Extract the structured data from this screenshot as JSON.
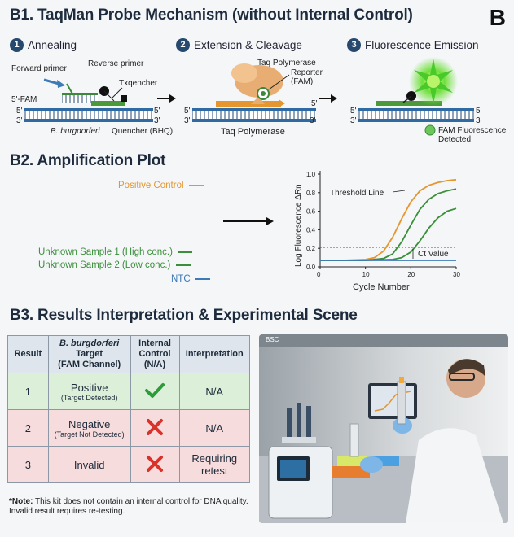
{
  "b1": {
    "title": "B1. TaqMan Probe Mechanism (without Internal Control)",
    "corner": "B",
    "steps": [
      {
        "num": "1",
        "label": "Annealing"
      },
      {
        "num": "2",
        "label": "Extension & Cleavage"
      },
      {
        "num": "3",
        "label": "Fluorescence Emission"
      }
    ],
    "labels": {
      "forward_primer": "Forward primer",
      "reverse_primer": "Reverse primer",
      "txqencher": "Txqencher",
      "fam_5": "5'-FAM",
      "b_burg": "B. burgdorferi",
      "quencher": "Quencher (BHQ)",
      "taq_poly_top": "Taq Polymerase",
      "reporter": "Reporter\n(FAM)",
      "taq_poly_bottom": "Taq Polymerase",
      "fam_fluor": "FAM Fluorescence\nDetected",
      "p5": "5'",
      "p3": "3'"
    }
  },
  "b2": {
    "title": "B2. Amplification Plot",
    "legend": [
      {
        "label": "Positive Control",
        "color": "#e5962e"
      },
      {
        "label": "Unknown Sample 1 (High conc.)",
        "color": "#3b8f3b"
      },
      {
        "label": "Unknown Sample 2 (Low conc.)",
        "color": "#3b8f3b"
      },
      {
        "label": "NTC",
        "color": "#3c7ab8"
      }
    ],
    "threshold_label": "Threshold Line",
    "ct_label": "Ct Value",
    "chart_data": {
      "type": "line",
      "xlabel": "Cycle Number",
      "ylabel": "Log Fluorescence ΔRn",
      "xlim": [
        0,
        30
      ],
      "ylim": [
        0,
        1.0
      ],
      "xticks": [
        "0",
        "10",
        "20",
        "30"
      ],
      "yticks": [
        "0.0",
        "0.2",
        "0.4",
        "0.6",
        "0.8",
        "1.0"
      ],
      "threshold": 0.21,
      "series": [
        {
          "name": "Positive Control",
          "color": "#e5962e",
          "x": [
            0,
            5,
            10,
            12,
            14,
            16,
            18,
            20,
            22,
            24,
            26,
            28,
            30
          ],
          "y": [
            0.07,
            0.07,
            0.08,
            0.1,
            0.17,
            0.32,
            0.52,
            0.7,
            0.82,
            0.88,
            0.91,
            0.93,
            0.94
          ]
        },
        {
          "name": "Unknown Sample 1 (High conc.)",
          "color": "#3b8f3b",
          "x": [
            0,
            5,
            10,
            14,
            16,
            18,
            20,
            22,
            24,
            26,
            28,
            30
          ],
          "y": [
            0.07,
            0.07,
            0.07,
            0.09,
            0.14,
            0.27,
            0.45,
            0.62,
            0.73,
            0.79,
            0.82,
            0.84
          ]
        },
        {
          "name": "Unknown Sample 2 (Low conc.)",
          "color": "#3b8f3b",
          "x": [
            0,
            5,
            10,
            16,
            18,
            20,
            22,
            24,
            26,
            28,
            30
          ],
          "y": [
            0.07,
            0.07,
            0.07,
            0.08,
            0.1,
            0.16,
            0.28,
            0.42,
            0.53,
            0.6,
            0.63
          ]
        },
        {
          "name": "NTC",
          "color": "#3c7ab8",
          "x": [
            0,
            30
          ],
          "y": [
            0.07,
            0.07
          ]
        }
      ]
    }
  },
  "b3": {
    "title": "B3. Results Interpretation & Experimental Scene",
    "table": {
      "headers": [
        "Result",
        "B. burgdorferi Target (FAM Channel)",
        "Internal Control (N/A)",
        "Interpretation"
      ],
      "header_parts": {
        "target_italic": "B. burgdorferi",
        "target_rest": "Target",
        "target_ch": "(FAM Channel)",
        "ic1": "Internal",
        "ic2": "Control",
        "ic3": "(N/A)"
      },
      "rows": [
        {
          "num": "1",
          "main": "Positive",
          "sub": "(Target Detected)",
          "icon": "check-icon",
          "interp": "N/A"
        },
        {
          "num": "2",
          "main": "Negative",
          "sub": "(Target Not Detected)",
          "icon": "cross-icon",
          "interp": "N/A"
        },
        {
          "num": "3",
          "main": "Invalid",
          "sub": "",
          "icon": "cross-icon",
          "interp": "Requiring retest"
        }
      ]
    },
    "note_bold": "*Note:",
    "note_text": " This kit does not contain an internal control for DNA quality. Invalid result requires re-testing.",
    "photo_label": "BSC"
  }
}
